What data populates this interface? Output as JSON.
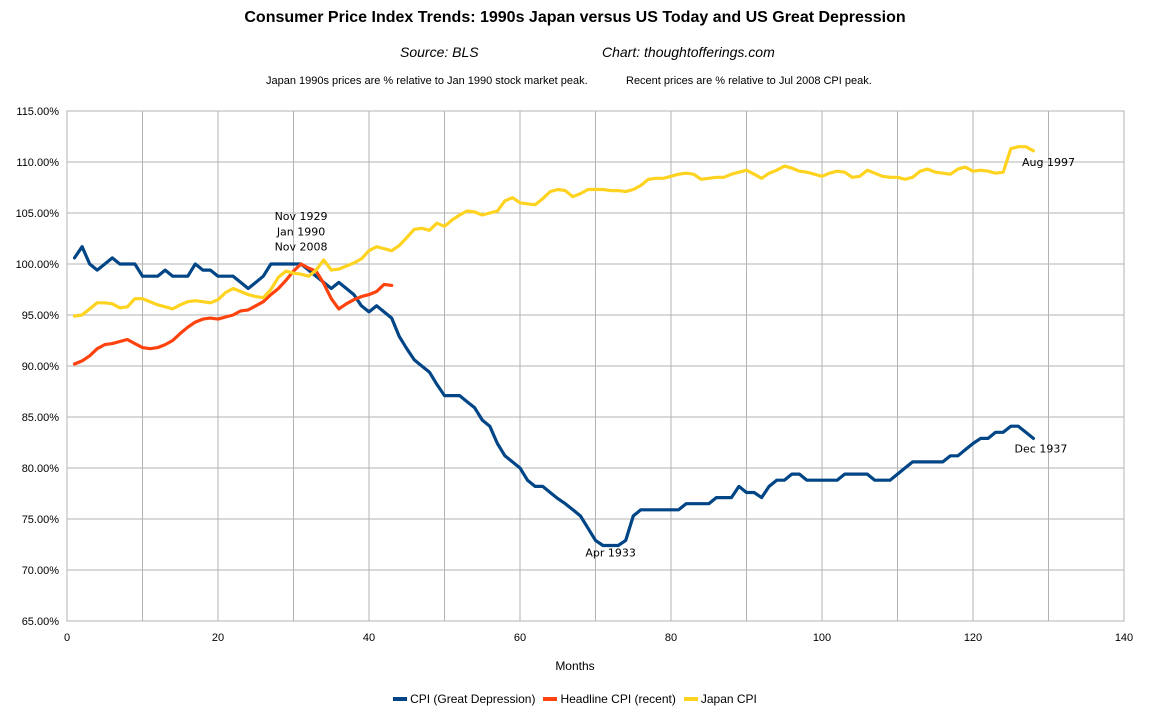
{
  "chart_data": {
    "type": "line",
    "title": "Consumer Price Index Trends: 1990s Japan versus US Today and US Great Depression",
    "source": "Source: BLS",
    "credit": "Chart: thoughtofferings.com",
    "note_japan": "Japan 1990s prices are % relative to Jan 1990 stock market peak.",
    "note_recent": "Recent prices are % relative to Jul 2008 CPI peak.",
    "xlabel": "Months",
    "ylabel": "",
    "xlim": [
      0,
      140
    ],
    "ylim": [
      65,
      115
    ],
    "x_ticks": [
      "0",
      "20",
      "40",
      "60",
      "80",
      "100",
      "120",
      "140"
    ],
    "y_ticks": [
      "65.00%",
      "70.00%",
      "75.00%",
      "80.00%",
      "85.00%",
      "90.00%",
      "95.00%",
      "100.00%",
      "105.00%",
      "110.00%",
      "115.00%"
    ],
    "grid": true,
    "legend_position": "bottom",
    "annotations": [
      {
        "text": "Nov 1929",
        "x": 31,
        "y": 104.3
      },
      {
        "text": "Jan 1990",
        "x": 31,
        "y": 102.8
      },
      {
        "text": "Nov 2008",
        "x": 31,
        "y": 101.3
      },
      {
        "text": "Apr 1933",
        "x": 72,
        "y": 71.3
      },
      {
        "text": "Aug 1997",
        "x": 130,
        "y": 109.6
      },
      {
        "text": "Dec 1937",
        "x": 129,
        "y": 81.5
      }
    ],
    "series": [
      {
        "name": "CPI (Great Depression)",
        "color": "#004586",
        "x": [
          1,
          2,
          3,
          4,
          5,
          6,
          7,
          8,
          9,
          10,
          11,
          12,
          13,
          14,
          15,
          16,
          17,
          18,
          19,
          20,
          21,
          22,
          23,
          24,
          25,
          26,
          27,
          28,
          29,
          30,
          31,
          32,
          33,
          34,
          35,
          36,
          37,
          38,
          39,
          40,
          41,
          42,
          43,
          44,
          45,
          46,
          47,
          48,
          49,
          50,
          51,
          52,
          53,
          54,
          55,
          56,
          57,
          58,
          59,
          60,
          61,
          62,
          63,
          64,
          65,
          66,
          67,
          68,
          69,
          70,
          71,
          72,
          73,
          74,
          75,
          76,
          77,
          78,
          79,
          80,
          81,
          82,
          83,
          84,
          85,
          86,
          87,
          88,
          89,
          90,
          91,
          92,
          93,
          94,
          95,
          96,
          97,
          98,
          99,
          100,
          101,
          102,
          103,
          104,
          105,
          106,
          107,
          108,
          109,
          110,
          111,
          112,
          113,
          114,
          115,
          116,
          117,
          118,
          119,
          120,
          121,
          122,
          123,
          124,
          125,
          126,
          127,
          128
        ],
        "values": [
          100.6,
          101.7,
          100.0,
          99.4,
          100.0,
          100.6,
          100.0,
          100.0,
          100.0,
          98.8,
          98.8,
          98.8,
          99.4,
          98.8,
          98.8,
          98.8,
          100.0,
          99.4,
          99.4,
          98.8,
          98.8,
          98.8,
          98.2,
          97.6,
          98.2,
          98.8,
          100.0,
          100.0,
          100.0,
          100.0,
          100.0,
          99.4,
          98.8,
          98.2,
          97.6,
          98.2,
          97.6,
          97.0,
          95.9,
          95.3,
          95.9,
          95.3,
          94.7,
          92.9,
          91.7,
          90.6,
          90.0,
          89.4,
          88.2,
          87.1,
          87.1,
          87.1,
          86.5,
          85.9,
          84.7,
          84.1,
          82.4,
          81.2,
          80.6,
          80.0,
          78.8,
          78.2,
          78.2,
          77.6,
          77.0,
          76.5,
          75.9,
          75.3,
          74.1,
          72.9,
          72.4,
          72.4,
          72.4,
          72.9,
          75.3,
          75.9,
          75.9,
          75.9,
          75.9,
          75.9,
          75.9,
          76.5,
          76.5,
          76.5,
          76.5,
          77.1,
          77.1,
          77.1,
          78.2,
          77.6,
          77.6,
          77.1,
          78.2,
          78.8,
          78.8,
          79.4,
          79.4,
          78.8,
          78.8,
          78.8,
          78.8,
          78.8,
          79.4,
          79.4,
          79.4,
          79.4,
          78.8,
          78.8,
          78.8,
          79.4,
          80.0,
          80.6,
          80.6,
          80.6,
          80.6,
          80.6,
          81.2,
          81.2,
          81.8,
          82.4,
          82.9,
          82.9,
          83.5,
          83.5,
          84.1,
          84.1,
          83.5,
          82.9
        ]
      },
      {
        "name": "Headline CPI (recent)",
        "color": "#ff420e",
        "x": [
          1,
          2,
          3,
          4,
          5,
          6,
          7,
          8,
          9,
          10,
          11,
          12,
          13,
          14,
          15,
          16,
          17,
          18,
          19,
          20,
          21,
          22,
          23,
          24,
          25,
          26,
          27,
          28,
          29,
          30,
          31,
          32,
          33,
          34,
          35,
          36,
          37,
          38,
          39,
          40,
          41,
          42,
          43
        ],
        "values": [
          90.2,
          90.5,
          91.0,
          91.7,
          92.1,
          92.2,
          92.4,
          92.6,
          92.2,
          91.8,
          91.7,
          91.8,
          92.1,
          92.5,
          93.2,
          93.8,
          94.3,
          94.6,
          94.7,
          94.6,
          94.8,
          95.0,
          95.4,
          95.5,
          95.9,
          96.3,
          97.0,
          97.6,
          98.4,
          99.3,
          100.0,
          99.6,
          99.3,
          98.1,
          96.6,
          95.6,
          96.1,
          96.5,
          96.8,
          97.0,
          97.3,
          98.0,
          97.9
        ]
      },
      {
        "name": "Japan CPI",
        "color": "#ffd320",
        "x": [
          1,
          2,
          3,
          4,
          5,
          6,
          7,
          8,
          9,
          10,
          11,
          12,
          13,
          14,
          15,
          16,
          17,
          18,
          19,
          20,
          21,
          22,
          23,
          24,
          25,
          26,
          27,
          28,
          29,
          30,
          31,
          32,
          33,
          34,
          35,
          36,
          37,
          38,
          39,
          40,
          41,
          42,
          43,
          44,
          45,
          46,
          47,
          48,
          49,
          50,
          51,
          52,
          53,
          54,
          55,
          56,
          57,
          58,
          59,
          60,
          61,
          62,
          63,
          64,
          65,
          66,
          67,
          68,
          69,
          70,
          71,
          72,
          73,
          74,
          75,
          76,
          77,
          78,
          79,
          80,
          81,
          82,
          83,
          84,
          85,
          86,
          87,
          88,
          89,
          90,
          91,
          92,
          93,
          94,
          95,
          96,
          97,
          98,
          99,
          100,
          101,
          102,
          103,
          104,
          105,
          106,
          107,
          108,
          109,
          110,
          111,
          112,
          113,
          114,
          115,
          116,
          117,
          118,
          119,
          120,
          121,
          122,
          123,
          124,
          125,
          126,
          127,
          128
        ],
        "values": [
          94.9,
          95.0,
          95.6,
          96.2,
          96.2,
          96.1,
          95.7,
          95.8,
          96.6,
          96.6,
          96.3,
          96.0,
          95.8,
          95.6,
          96.0,
          96.3,
          96.4,
          96.3,
          96.2,
          96.5,
          97.2,
          97.6,
          97.3,
          97.0,
          96.8,
          96.7,
          97.5,
          98.7,
          99.3,
          99.1,
          99.0,
          98.8,
          99.4,
          100.4,
          99.4,
          99.5,
          99.8,
          100.1,
          100.5,
          101.3,
          101.7,
          101.5,
          101.3,
          101.8,
          102.6,
          103.4,
          103.5,
          103.3,
          104.0,
          103.7,
          104.3,
          104.8,
          105.2,
          105.1,
          104.8,
          105.0,
          105.2,
          106.2,
          106.5,
          106.0,
          105.9,
          105.8,
          106.4,
          107.1,
          107.3,
          107.2,
          106.6,
          106.9,
          107.3,
          107.3,
          107.3,
          107.2,
          107.2,
          107.1,
          107.3,
          107.7,
          108.3,
          108.4,
          108.4,
          108.6,
          108.8,
          108.9,
          108.8,
          108.3,
          108.4,
          108.5,
          108.5,
          108.8,
          109.0,
          109.2,
          108.8,
          108.4,
          108.9,
          109.2,
          109.6,
          109.4,
          109.1,
          109.0,
          108.8,
          108.6,
          108.9,
          109.1,
          109.0,
          108.5,
          108.6,
          109.2,
          108.9,
          108.6,
          108.5,
          108.5,
          108.3,
          108.5,
          109.1,
          109.3,
          109.0,
          108.9,
          108.8,
          109.3,
          109.5,
          109.1,
          109.2,
          109.1,
          108.9,
          109.0,
          111.3,
          111.5,
          111.5,
          111.1
        ]
      }
    ]
  }
}
